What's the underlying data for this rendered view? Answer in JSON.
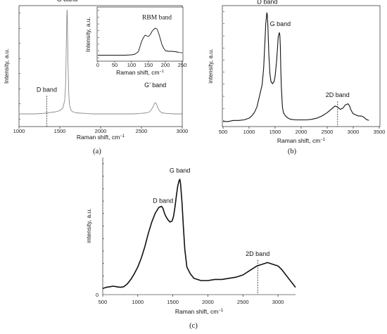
{
  "chart_data": [
    {
      "id": "a",
      "type": "line",
      "panel_label": "(a)",
      "xlabel": "Raman shift, cm",
      "xlabel_sup": "−1",
      "ylabel": "Intensity, a.u.",
      "xlim": [
        1000,
        3000
      ],
      "xticks": [
        1000,
        1500,
        2000,
        2500,
        3000
      ],
      "ylim": [
        0,
        100
      ],
      "annotations": [
        {
          "text": "G band",
          "x": 1590,
          "y": 108
        },
        {
          "text": "D band",
          "x": 1340,
          "y": 23,
          "dashed": true
        },
        {
          "text": "G’ band",
          "x": 2670,
          "y": 27
        }
      ],
      "series": [
        {
          "x": [
            1000,
            1100,
            1200,
            1300,
            1350,
            1400,
            1450,
            1500,
            1540,
            1560,
            1570,
            1575,
            1580,
            1585,
            1588,
            1590,
            1592,
            1595,
            1600,
            1610,
            1620,
            1640,
            1660,
            1700,
            1800,
            1900,
            2000,
            2100,
            2200,
            2300,
            2400,
            2500,
            2560,
            2600,
            2630,
            2650,
            2660,
            2670,
            2680,
            2690,
            2700,
            2720,
            2750,
            2800,
            2900,
            3000
          ],
          "y": [
            2,
            2,
            2,
            2.5,
            3,
            3.5,
            4,
            5,
            8,
            15,
            27,
            45,
            70,
            90,
            98,
            100,
            95,
            80,
            50,
            20,
            10,
            5,
            4,
            3,
            2.5,
            2,
            2,
            2,
            2,
            2,
            2,
            2.5,
            3,
            4,
            7,
            10,
            12,
            12.5,
            12,
            10,
            8,
            5,
            3,
            2.5,
            2,
            2
          ]
        }
      ]
    },
    {
      "id": "a-inset",
      "type": "line",
      "xlabel": "Raman shift, cm",
      "xlabel_sup": "−1",
      "ylabel": "Intensity, a.u.",
      "xlim": [
        0,
        250
      ],
      "xticks": [
        0,
        50,
        100,
        150,
        200,
        250
      ],
      "ylim": [
        0,
        100
      ],
      "annotations": [
        {
          "text": "RBM band",
          "x": 175,
          "y": 107
        }
      ],
      "series": [
        {
          "x": [
            0,
            20,
            40,
            60,
            80,
            100,
            110,
            120,
            125,
            130,
            135,
            140,
            145,
            150,
            155,
            160,
            165,
            170,
            175,
            180,
            185,
            190,
            195,
            200,
            210,
            220,
            230,
            240,
            250
          ],
          "y": [
            5,
            5,
            5,
            5,
            5,
            6,
            8,
            15,
            30,
            45,
            55,
            62,
            60,
            58,
            63,
            72,
            78,
            82,
            80,
            68,
            52,
            35,
            25,
            18,
            16,
            16,
            15,
            13,
            12
          ]
        }
      ]
    },
    {
      "id": "b",
      "type": "line",
      "panel_label": "(b)",
      "xlabel": "Raman shift, cm",
      "xlabel_sup": "−1",
      "ylabel": "intensity, a.u.",
      "xlim": [
        500,
        3500
      ],
      "xticks": [
        500,
        1000,
        1500,
        2000,
        2500,
        3000,
        3500
      ],
      "ylim": [
        0,
        100
      ],
      "annotations": [
        {
          "text": "D band",
          "x": 1350,
          "y": 108
        },
        {
          "text": "G band",
          "x": 1600,
          "y": 88
        },
        {
          "text": "2D band",
          "x": 2700,
          "y": 24,
          "dashed": true
        }
      ],
      "series": [
        {
          "x": [
            500,
            600,
            700,
            800,
            900,
            1000,
            1050,
            1100,
            1150,
            1200,
            1250,
            1280,
            1300,
            1320,
            1340,
            1350,
            1360,
            1380,
            1400,
            1420,
            1450,
            1480,
            1500,
            1530,
            1560,
            1580,
            1590,
            1600,
            1610,
            1620,
            1640,
            1660,
            1700,
            1750,
            1800,
            1900,
            2000,
            2100,
            2200,
            2300,
            2400,
            2500,
            2600,
            2650,
            2700,
            2750,
            2800,
            2850,
            2900,
            2930,
            2960,
            3000,
            3050,
            3100,
            3150,
            3200,
            3250,
            3300
          ],
          "y": [
            2,
            2,
            3,
            3,
            3.5,
            5,
            7,
            10,
            15,
            25,
            35,
            50,
            70,
            90,
            100,
            98,
            90,
            62,
            45,
            38,
            36,
            38,
            43,
            57,
            78,
            82,
            80,
            70,
            48,
            32,
            15,
            10,
            7,
            5,
            4,
            3.5,
            3.5,
            3.5,
            4,
            5,
            7,
            10,
            14,
            16,
            15,
            13,
            14,
            17,
            18,
            16,
            12,
            9,
            8,
            7,
            7,
            6,
            4,
            3
          ]
        }
      ]
    },
    {
      "id": "c",
      "type": "line",
      "panel_label": "(c)",
      "xlabel": "Raman shift, cm",
      "xlabel_sup": "−1",
      "ylabel": "intensity, a.u.",
      "xlim": [
        500,
        3250
      ],
      "xticks": [
        500,
        1000,
        1500,
        2000,
        2500,
        3000
      ],
      "ytick_label": "0",
      "ylim": [
        0,
        100
      ],
      "annotations": [
        {
          "text": "G band",
          "x": 1600,
          "y": 106
        },
        {
          "text": "D band",
          "x": 1360,
          "y": 79
        },
        {
          "text": "2D band",
          "x": 2710,
          "y": 32,
          "dashed": true
        }
      ],
      "series": [
        {
          "x": [
            500,
            550,
            600,
            650,
            700,
            750,
            800,
            850,
            900,
            950,
            1000,
            1050,
            1100,
            1150,
            1200,
            1250,
            1300,
            1340,
            1360,
            1380,
            1400,
            1430,
            1460,
            1490,
            1510,
            1530,
            1550,
            1570,
            1590,
            1600,
            1610,
            1630,
            1650,
            1670,
            1700,
            1750,
            1800,
            1900,
            2000,
            2100,
            2200,
            2300,
            2400,
            2500,
            2600,
            2700,
            2800,
            2850,
            2900,
            2950,
            3000,
            3050,
            3100,
            3150,
            3200,
            3250
          ],
          "y": [
            3,
            4,
            4.5,
            5,
            4.5,
            4,
            4.5,
            7,
            11,
            16,
            22,
            30,
            40,
            52,
            62,
            70,
            75,
            76,
            74,
            70,
            67,
            64,
            62,
            63,
            67,
            75,
            85,
            94,
            99,
            100,
            96,
            80,
            58,
            38,
            22,
            16,
            12,
            10,
            10,
            11,
            11,
            12,
            13,
            15,
            19,
            23,
            25,
            26,
            25,
            24,
            23,
            20,
            16,
            12,
            8,
            4
          ]
        }
      ]
    }
  ]
}
